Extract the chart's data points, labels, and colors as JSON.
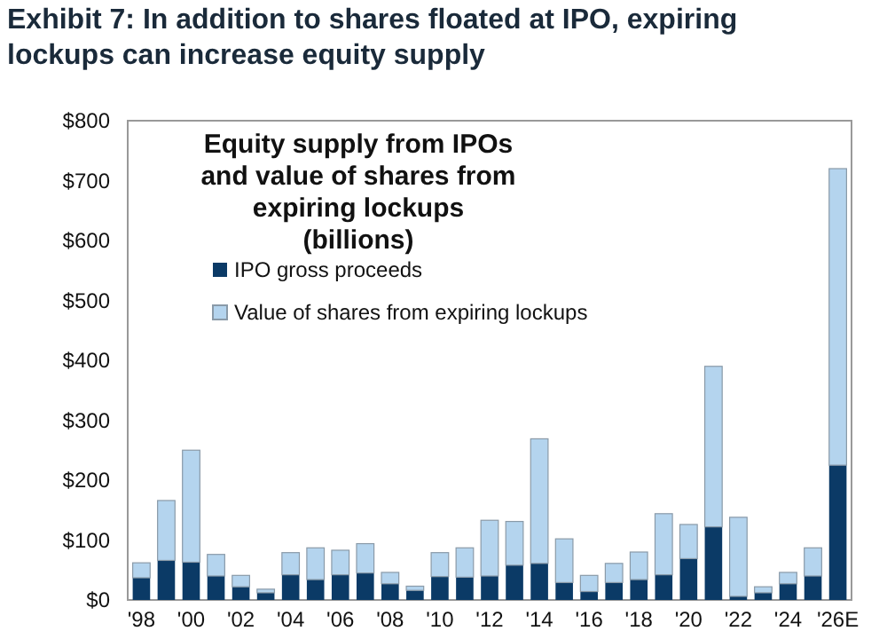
{
  "chart_data": {
    "type": "bar",
    "stacked": true,
    "title": "Exhibit 7: In addition to shares floated at IPO, expiring lockups can increase equity supply",
    "subtitle": "Equity supply from IPOs and value of shares from expiring lockups (billions)",
    "categories": [
      "'98",
      null,
      "'00",
      null,
      "'02",
      null,
      "'04",
      null,
      "'06",
      null,
      "'08",
      null,
      "'10",
      null,
      "'12",
      null,
      "'14",
      null,
      "'16",
      null,
      "'18",
      null,
      "'20",
      null,
      "'22",
      null,
      "'24",
      null,
      "'26E"
    ],
    "series": [
      {
        "name": "IPO gross proceeds",
        "color": "#0b3a66",
        "values": [
          37,
          66,
          63,
          40,
          22,
          12,
          42,
          34,
          42,
          45,
          27,
          16,
          39,
          38,
          40,
          58,
          61,
          29,
          14,
          29,
          34,
          42,
          69,
          122,
          6,
          12,
          27,
          40,
          225
        ]
      },
      {
        "name": "Value of shares from expiring lockups",
        "color": "#b4d4ee",
        "values": [
          25,
          100,
          187,
          36,
          19,
          6,
          37,
          53,
          41,
          49,
          19,
          7,
          40,
          49,
          93,
          73,
          208,
          73,
          27,
          32,
          46,
          102,
          57,
          268,
          132,
          10,
          19,
          47,
          495
        ]
      }
    ],
    "ylim": [
      0,
      800
    ],
    "yticks": [
      {
        "value": 0,
        "label": "$0"
      },
      {
        "value": 100,
        "label": "$100"
      },
      {
        "value": 200,
        "label": "$200"
      },
      {
        "value": 300,
        "label": "$300"
      },
      {
        "value": 400,
        "label": "$400"
      },
      {
        "value": 500,
        "label": "$500"
      },
      {
        "value": 600,
        "label": "$600"
      },
      {
        "value": 700,
        "label": "$700"
      },
      {
        "value": 800,
        "label": "$800"
      }
    ],
    "grid": false,
    "legend": "top left"
  }
}
